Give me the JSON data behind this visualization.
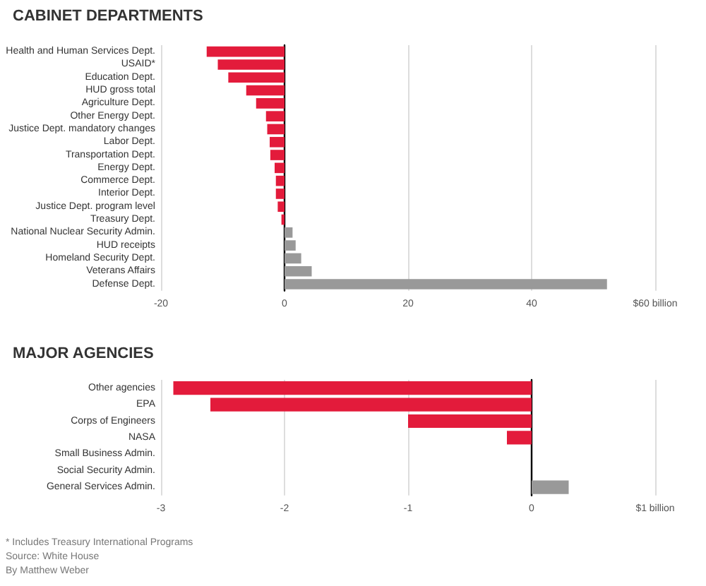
{
  "chart_data": [
    {
      "type": "bar",
      "orientation": "horizontal",
      "title": "CABINET DEPARTMENTS",
      "categories": [
        "Health and Human Services Dept.",
        "USAID*",
        "Education Dept.",
        "HUD gross total",
        "Agriculture Dept.",
        "Other Energy Dept.",
        "Justice Dept. mandatory changes",
        "Labor Dept.",
        "Transportation Dept.",
        "Energy Dept.",
        "Commerce Dept.",
        "Interior Dept.",
        "Justice Dept. program level",
        "Treasury Dept.",
        "National Nuclear Security Admin.",
        "HUD receipts",
        "Homeland Security Dept.",
        "Veterans Affairs",
        "Defense Dept."
      ],
      "values": [
        -12.6,
        -10.8,
        -9.1,
        -6.2,
        -4.6,
        -3.0,
        -2.8,
        -2.4,
        -2.3,
        -1.6,
        -1.4,
        -1.4,
        -1.1,
        -0.5,
        1.3,
        1.8,
        2.7,
        4.4,
        52.2
      ],
      "colors": [
        "#e31b3b",
        "#e31b3b",
        "#e31b3b",
        "#e31b3b",
        "#e31b3b",
        "#e31b3b",
        "#e31b3b",
        "#e31b3b",
        "#e31b3b",
        "#e31b3b",
        "#e31b3b",
        "#e31b3b",
        "#e31b3b",
        "#e31b3b",
        "#999999",
        "#999999",
        "#999999",
        "#999999",
        "#999999"
      ],
      "xlim": [
        -20,
        60
      ],
      "xticks": [
        -20,
        0,
        20,
        40,
        {
          "value": 60,
          "label": "$60 billion"
        }
      ],
      "grid": "x"
    },
    {
      "type": "bar",
      "orientation": "horizontal",
      "title": "MAJOR AGENCIES",
      "categories": [
        "Other agencies",
        "EPA",
        "Corps of Engineers",
        "NASA",
        "Small Business Admin.",
        "Social Security Admin.",
        "General Services Admin."
      ],
      "values": [
        -2.9,
        -2.6,
        -1.0,
        -0.2,
        0,
        0,
        0.3
      ],
      "colors": [
        "#e31b3b",
        "#e31b3b",
        "#e31b3b",
        "#e31b3b",
        "#e31b3b",
        "#e31b3b",
        "#999999"
      ],
      "xlim": [
        -3,
        1
      ],
      "xticks": [
        -3,
        -2,
        -1,
        0,
        {
          "value": 1,
          "label": "$1 billion"
        }
      ],
      "grid": "x",
      "annotations": [
        "* Includes Treasury International Programs",
        "Source: White House",
        "By Matthew Weber"
      ]
    }
  ]
}
